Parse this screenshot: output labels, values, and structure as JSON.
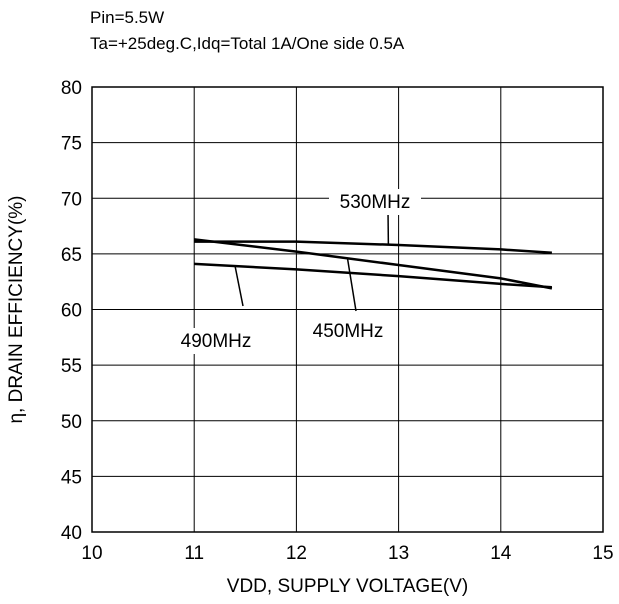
{
  "conditions": {
    "line1": "Pin=5.5W",
    "line2": "Ta=+25deg.C,Idq=Total 1A/One side 0.5A"
  },
  "chart_data": {
    "type": "line",
    "title": "",
    "xlabel": "VDD, SUPPLY VOLTAGE(V)",
    "ylabel": "η, DRAIN EFFICIENCY(%)",
    "xlim": [
      10,
      15
    ],
    "ylim": [
      40,
      80
    ],
    "xticks": [
      "10",
      "11",
      "12",
      "13",
      "14",
      "15"
    ],
    "yticks": [
      "40",
      "45",
      "50",
      "55",
      "60",
      "65",
      "70",
      "75",
      "80"
    ],
    "grid": true,
    "legend": "none",
    "series": [
      {
        "name": "530MHz",
        "x": [
          11,
          12,
          13,
          14,
          14.5
        ],
        "values": [
          66.1,
          66.1,
          65.8,
          65.4,
          65.1
        ],
        "color": "#000000"
      },
      {
        "name": "450MHz",
        "x": [
          11,
          12,
          13,
          14,
          14.5
        ],
        "values": [
          66.3,
          65.2,
          64.0,
          62.8,
          61.9
        ],
        "color": "#000000"
      },
      {
        "name": "490MHz",
        "x": [
          11,
          12,
          13,
          14,
          14.5
        ],
        "values": [
          64.1,
          63.6,
          63.0,
          62.3,
          62.0
        ],
        "color": "#000000"
      }
    ]
  }
}
